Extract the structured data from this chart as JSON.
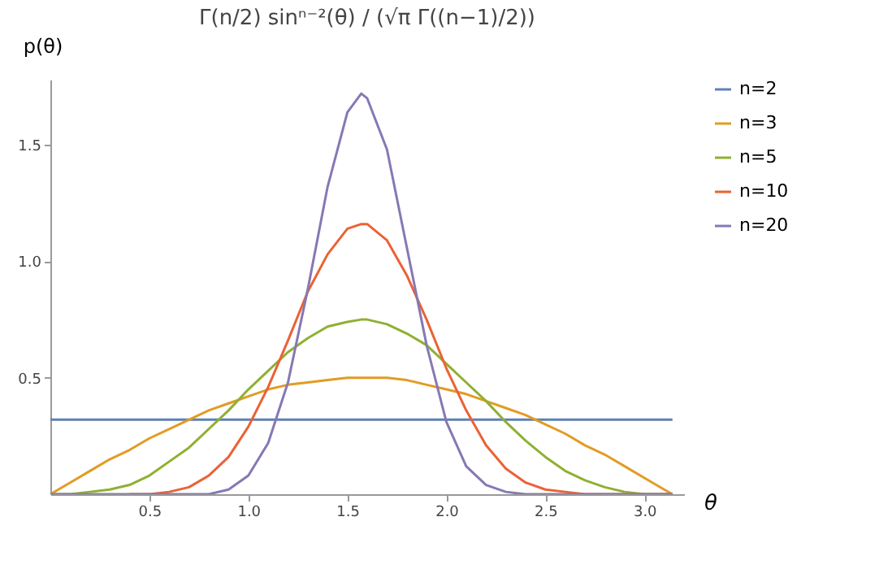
{
  "chart_data": {
    "type": "line",
    "title": "Γ(n/2) sinⁿ⁻²(θ) / (√π Γ((n−1)/2))",
    "xlabel": "θ",
    "ylabel": "p(θ)",
    "x": [
      0,
      0.1,
      0.2,
      0.3,
      0.4,
      0.5,
      0.6,
      0.7,
      0.8,
      0.9,
      1.0,
      1.1,
      1.2,
      1.3,
      1.4,
      1.5,
      1.57,
      1.6,
      1.7,
      1.8,
      1.9,
      2.0,
      2.1,
      2.2,
      2.3,
      2.4,
      2.5,
      2.6,
      2.7,
      2.8,
      2.9,
      3.0,
      3.1,
      3.1416
    ],
    "series": [
      {
        "name": "n=2",
        "color": "#5e81b5",
        "x": [
          0,
          3.1416
        ],
        "values": [
          0.32,
          0.32
        ]
      },
      {
        "name": "n=3",
        "color": "#e19c24",
        "values": [
          0,
          0.05,
          0.1,
          0.15,
          0.19,
          0.24,
          0.28,
          0.32,
          0.36,
          0.39,
          0.42,
          0.45,
          0.47,
          0.48,
          0.49,
          0.5,
          0.5,
          0.5,
          0.5,
          0.49,
          0.47,
          0.45,
          0.43,
          0.4,
          0.37,
          0.34,
          0.3,
          0.26,
          0.21,
          0.17,
          0.12,
          0.07,
          0.02,
          0
        ]
      },
      {
        "name": "n=5",
        "color": "#8fb032",
        "values": [
          0,
          0,
          0.01,
          0.02,
          0.04,
          0.08,
          0.14,
          0.2,
          0.28,
          0.36,
          0.45,
          0.53,
          0.61,
          0.67,
          0.72,
          0.74,
          0.75,
          0.75,
          0.73,
          0.69,
          0.64,
          0.56,
          0.48,
          0.4,
          0.31,
          0.23,
          0.16,
          0.1,
          0.06,
          0.03,
          0.01,
          0,
          0,
          0
        ]
      },
      {
        "name": "n=10",
        "color": "#eb6235",
        "values": [
          null,
          null,
          null,
          null,
          0,
          0,
          0.01,
          0.03,
          0.08,
          0.16,
          0.29,
          0.46,
          0.66,
          0.87,
          1.03,
          1.14,
          1.16,
          1.16,
          1.09,
          0.94,
          0.75,
          0.54,
          0.36,
          0.21,
          0.11,
          0.05,
          0.02,
          0.01,
          0,
          0,
          0,
          0,
          0,
          0
        ]
      },
      {
        "name": "n=20",
        "color": "#8778b3",
        "values": [
          0,
          0,
          0,
          0,
          0,
          0,
          0,
          0,
          0,
          0.02,
          0.08,
          0.22,
          0.48,
          0.88,
          1.32,
          1.64,
          1.72,
          1.7,
          1.48,
          1.06,
          0.64,
          0.31,
          0.12,
          0.04,
          0.01,
          0,
          0,
          0,
          0,
          0,
          0,
          0,
          0,
          0
        ]
      }
    ],
    "xlim": [
      0,
      3.2
    ],
    "xticks": [
      0.5,
      {
        "value": 1,
        "label": "1.0"
      },
      1.5,
      {
        "value": 2,
        "label": "2.0"
      },
      2.5,
      {
        "value": 3,
        "label": "3.0"
      }
    ],
    "ylim": [
      0,
      1.78
    ],
    "yticks": [
      0.5,
      {
        "value": 1,
        "label": "1.0"
      },
      1.5
    ],
    "legend": "right"
  }
}
